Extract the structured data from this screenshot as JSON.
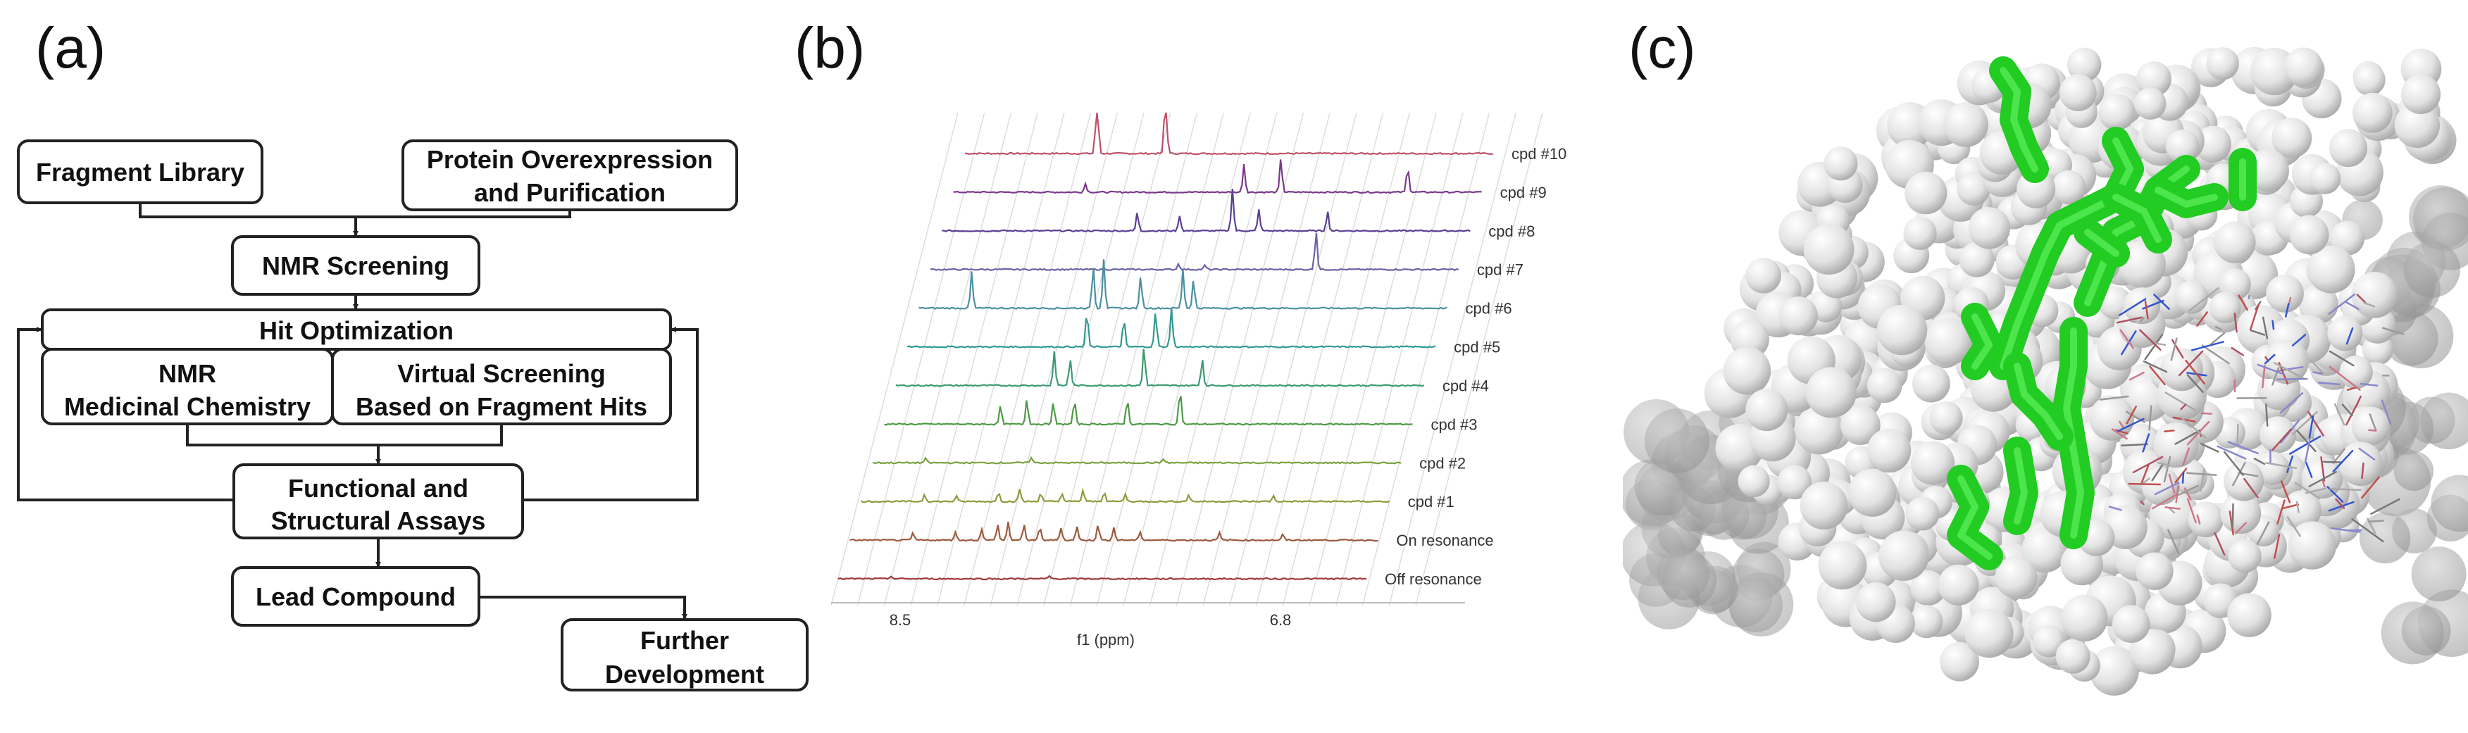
{
  "panels": {
    "a": {
      "label": "(a)",
      "boxes": {
        "fragment_library": "Fragment Library",
        "protein_1": "Protein Overexpression",
        "protein_2": "and Purification",
        "nmr_screening": "NMR Screening",
        "hit_optimization": "Hit Optimization",
        "nmr_med_1": "NMR",
        "nmr_med_2": "Medicinal Chemistry",
        "virtual_1": "Virtual Screening",
        "virtual_2": "Based on Fragment Hits",
        "functional_1": "Functional and",
        "functional_2": "Structural Assays",
        "lead": "Lead Compound",
        "further_1": "Further",
        "further_2": "Development"
      }
    },
    "b": {
      "label": "(b)",
      "traces": [
        "cpd #10",
        "cpd #9",
        "cpd #8",
        "cpd #7",
        "cpd #6",
        "cpd #5",
        "cpd #4",
        "cpd #3",
        "cpd #2",
        "cpd #1",
        "On resonance",
        "Off resonance"
      ],
      "colors": [
        "#c0506a",
        "#7a3a8c",
        "#5a3f95",
        "#6b63a8",
        "#4a8fa3",
        "#2f9a93",
        "#3e9a72",
        "#4e9a47",
        "#7aa13c",
        "#8f9a3a",
        "#9b5a3d",
        "#a03838"
      ],
      "x_ticks": [
        "8.5",
        "6.8"
      ],
      "xlabel": "f1 (ppm)"
    },
    "c": {
      "label": "(c)",
      "colors": {
        "surface": "#e6e6e6",
        "ligand": "#22cc22"
      }
    }
  }
}
